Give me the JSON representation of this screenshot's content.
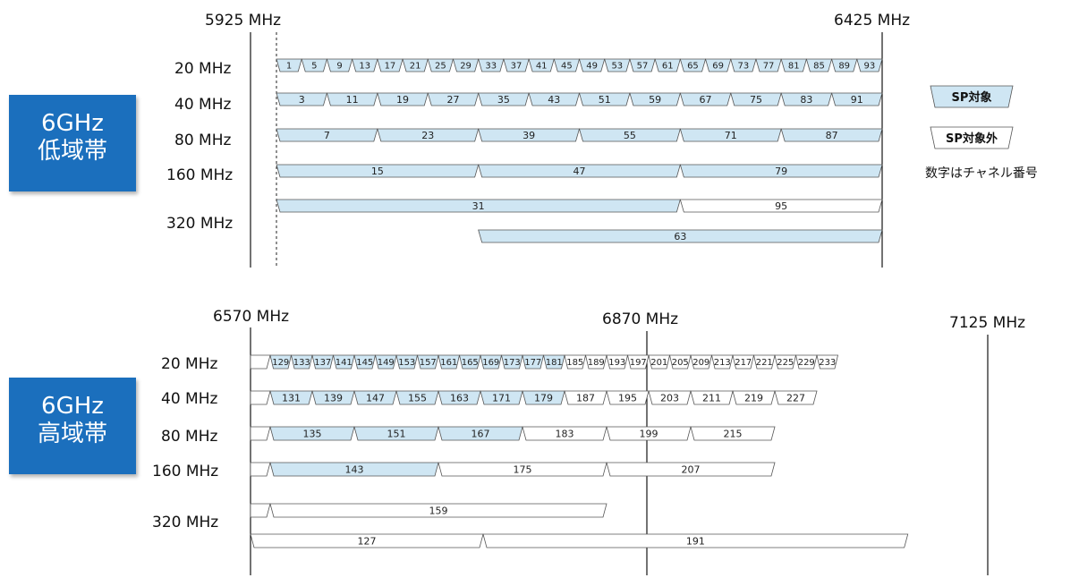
{
  "low_band": {
    "title_line1": "6GHz",
    "title_line2": "低域帯",
    "freq_start": "5925 MHz",
    "freq_end": "6425 MHz",
    "rows": [
      {
        "label": "20 MHz",
        "sp": true,
        "channels": [
          "1",
          "5",
          "9",
          "13",
          "17",
          "21",
          "25",
          "29",
          "33",
          "37",
          "41",
          "45",
          "49",
          "53",
          "57",
          "61",
          "65",
          "69",
          "73",
          "77",
          "81",
          "85",
          "89",
          "93"
        ]
      },
      {
        "label": "40 MHz",
        "sp": true,
        "channels": [
          "3",
          "11",
          "19",
          "27",
          "35",
          "43",
          "51",
          "59",
          "67",
          "75",
          "83",
          "91"
        ]
      },
      {
        "label": "80 MHz",
        "sp": true,
        "channels": [
          "7",
          "23",
          "39",
          "55",
          "71",
          "87"
        ]
      },
      {
        "label": "160 MHz",
        "sp": true,
        "channels": [
          "15",
          "47",
          "79"
        ]
      },
      {
        "label": "320 MHz",
        "channels_a": [
          {
            "num": "31",
            "sp": true
          },
          {
            "num": "95",
            "sp": false
          }
        ],
        "channels_b": [
          {
            "num": "63",
            "sp": true
          }
        ]
      }
    ]
  },
  "high_band": {
    "title_line1": "6GHz",
    "title_line2": "高域帯",
    "freq_start": "6570 MHz",
    "freq_mid": "6870 MHz",
    "freq_end": "7125 MHz",
    "rows": [
      {
        "label": "20 MHz",
        "channels": [
          {
            "num": "129",
            "sp": true
          },
          {
            "num": "133",
            "sp": true
          },
          {
            "num": "137",
            "sp": true
          },
          {
            "num": "141",
            "sp": true
          },
          {
            "num": "145",
            "sp": true
          },
          {
            "num": "149",
            "sp": true
          },
          {
            "num": "153",
            "sp": true
          },
          {
            "num": "157",
            "sp": true
          },
          {
            "num": "161",
            "sp": true
          },
          {
            "num": "165",
            "sp": true
          },
          {
            "num": "169",
            "sp": true
          },
          {
            "num": "173",
            "sp": true
          },
          {
            "num": "177",
            "sp": true
          },
          {
            "num": "181",
            "sp": true
          },
          {
            "num": "185",
            "sp": false
          },
          {
            "num": "189",
            "sp": false
          },
          {
            "num": "193",
            "sp": false
          },
          {
            "num": "197",
            "sp": false
          },
          {
            "num": "201",
            "sp": false
          },
          {
            "num": "205",
            "sp": false
          },
          {
            "num": "209",
            "sp": false
          },
          {
            "num": "213",
            "sp": false
          },
          {
            "num": "217",
            "sp": false
          },
          {
            "num": "221",
            "sp": false
          },
          {
            "num": "225",
            "sp": false
          },
          {
            "num": "229",
            "sp": false
          },
          {
            "num": "233",
            "sp": false
          }
        ]
      },
      {
        "label": "40 MHz",
        "channels": [
          {
            "num": "131",
            "sp": true
          },
          {
            "num": "139",
            "sp": true
          },
          {
            "num": "147",
            "sp": true
          },
          {
            "num": "155",
            "sp": true
          },
          {
            "num": "163",
            "sp": true
          },
          {
            "num": "171",
            "sp": true
          },
          {
            "num": "179",
            "sp": true
          },
          {
            "num": "187",
            "sp": false
          },
          {
            "num": "195",
            "sp": false
          },
          {
            "num": "203",
            "sp": false
          },
          {
            "num": "211",
            "sp": false
          },
          {
            "num": "219",
            "sp": false
          },
          {
            "num": "227",
            "sp": false
          }
        ]
      },
      {
        "label": "80 MHz",
        "channels": [
          {
            "num": "135",
            "sp": true
          },
          {
            "num": "151",
            "sp": true
          },
          {
            "num": "167",
            "sp": true
          },
          {
            "num": "183",
            "sp": false
          },
          {
            "num": "199",
            "sp": false
          },
          {
            "num": "215",
            "sp": false
          }
        ]
      },
      {
        "label": "160 MHz",
        "channels": [
          {
            "num": "143",
            "sp": true
          },
          {
            "num": "175",
            "sp": false
          },
          {
            "num": "207",
            "sp": false
          }
        ]
      },
      {
        "label": "320 MHz",
        "channels_a": [
          {
            "num": "159",
            "sp": false
          }
        ],
        "channels_b": [
          {
            "num": "127",
            "sp": false
          },
          {
            "num": "191",
            "sp": false
          }
        ]
      }
    ]
  },
  "legend": {
    "sp_label": "SP対象",
    "nonsp_label": "SP対象外",
    "note": "数字はチャネル番号"
  },
  "colors": {
    "sp_fill": "#cfe6f3",
    "nonsp_fill": "#ffffff",
    "band_box": "#1b6fbd"
  }
}
